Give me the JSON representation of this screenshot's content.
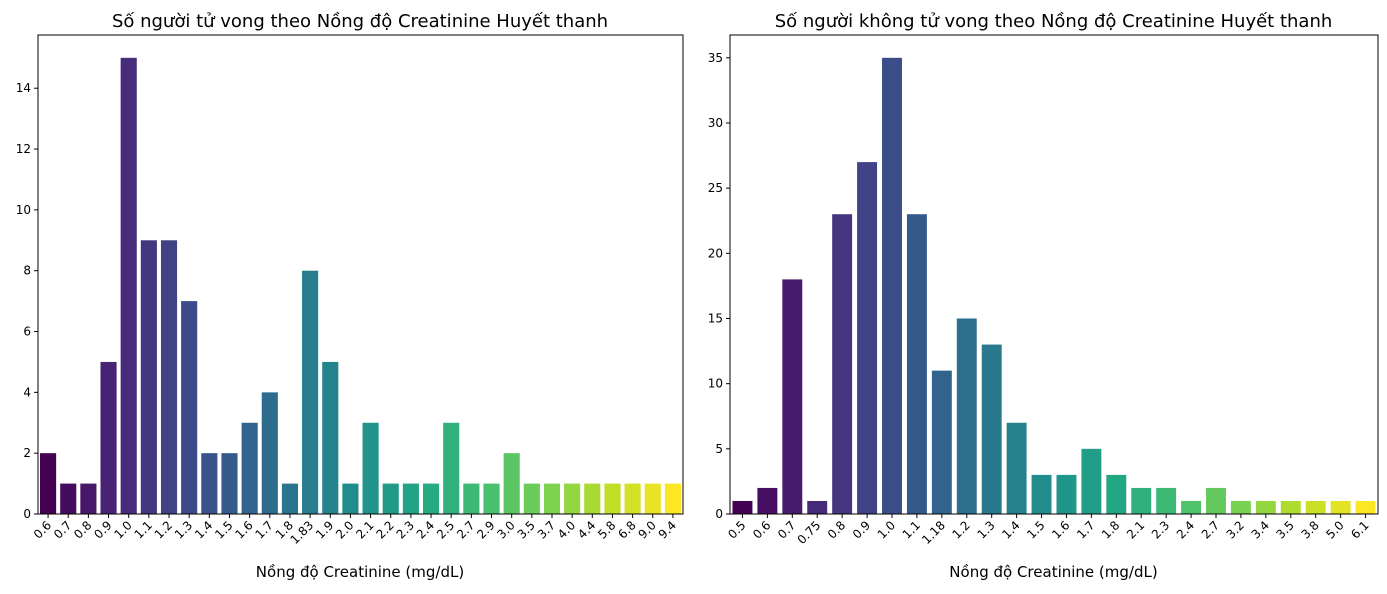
{
  "chart_data": [
    {
      "type": "bar",
      "title": "Số người tử vong theo Nồng độ Creatinine Huyết thanh",
      "xlabel": "Nồng độ Creatinine (mg/dL)",
      "ylabel": "",
      "categories": [
        "0.6",
        "0.7",
        "0.8",
        "0.9",
        "1.0",
        "1.1",
        "1.2",
        "1.3",
        "1.4",
        "1.5",
        "1.6",
        "1.7",
        "1.8",
        "1.83",
        "1.9",
        "2.0",
        "2.1",
        "2.2",
        "2.3",
        "2.4",
        "2.5",
        "2.7",
        "2.9",
        "3.0",
        "3.5",
        "3.7",
        "4.0",
        "4.4",
        "5.8",
        "6.8",
        "9.0",
        "9.4"
      ],
      "values": [
        2,
        1,
        1,
        5,
        15,
        9,
        9,
        7,
        2,
        2,
        3,
        4,
        1,
        8,
        5,
        1,
        3,
        1,
        1,
        1,
        3,
        1,
        1,
        2,
        1,
        1,
        1,
        1,
        1,
        1,
        1,
        1
      ],
      "ylim": [
        0,
        15.75
      ],
      "yticks": [
        0,
        2,
        4,
        6,
        8,
        10,
        12,
        14
      ],
      "colormap": "viridis",
      "grid": false
    },
    {
      "type": "bar",
      "title": "Số người không tử vong theo Nồng độ Creatinine Huyết thanh",
      "xlabel": "Nồng độ Creatinine (mg/dL)",
      "ylabel": "",
      "categories": [
        "0.5",
        "0.6",
        "0.7",
        "0.75",
        "0.8",
        "0.9",
        "1.0",
        "1.1",
        "1.18",
        "1.2",
        "1.3",
        "1.4",
        "1.5",
        "1.6",
        "1.7",
        "1.8",
        "2.1",
        "2.3",
        "2.4",
        "2.7",
        "3.2",
        "3.4",
        "3.5",
        "3.8",
        "5.0",
        "6.1"
      ],
      "values": [
        1,
        2,
        18,
        1,
        23,
        27,
        35,
        23,
        11,
        15,
        13,
        7,
        3,
        3,
        5,
        3,
        2,
        2,
        1,
        2,
        1,
        1,
        1,
        1,
        1,
        1
      ],
      "ylim": [
        0,
        36.75
      ],
      "yticks": [
        0,
        5,
        10,
        15,
        20,
        25,
        30,
        35
      ],
      "colormap": "viridis",
      "grid": false
    }
  ]
}
